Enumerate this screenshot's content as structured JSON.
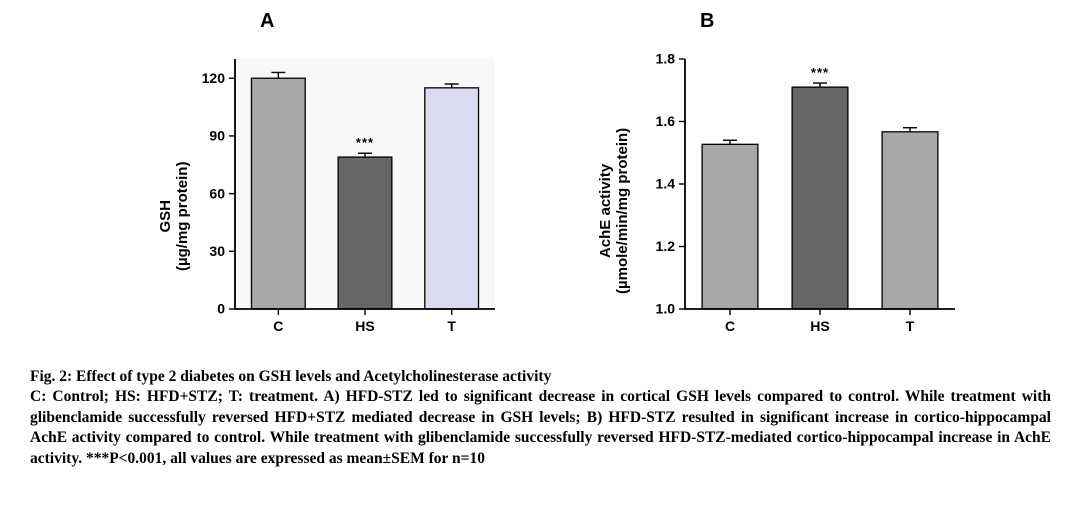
{
  "panels": {
    "A": {
      "label": "A",
      "type": "bar",
      "y_title_line1": "GSH",
      "y_title_line2": "(µg/mg protein)",
      "y_title_fontsize": 15,
      "ylim": [
        0,
        130
      ],
      "yticks": [
        0,
        30,
        60,
        90,
        120
      ],
      "categories": [
        "C",
        "HS",
        "T"
      ],
      "values": [
        120,
        79,
        115
      ],
      "errors": [
        3,
        2,
        2
      ],
      "sig_index": 1,
      "sig_label": "***",
      "bar_colors": [
        "#a8a8a8",
        "#666666",
        "#dadaf0"
      ],
      "background_color": "#f8f8f8",
      "bar_width": 0.62,
      "axis_color": "#000000",
      "tick_fontsize": 14
    },
    "B": {
      "label": "B",
      "type": "bar",
      "y_title_line1": "AchE activity",
      "y_title_line2": "(µmole/min/mg protein)",
      "y_title_fontsize": 15,
      "ylim": [
        1.0,
        1.8
      ],
      "yticks": [
        1.0,
        1.2,
        1.4,
        1.6,
        1.8
      ],
      "categories": [
        "C",
        "HS",
        "T"
      ],
      "values": [
        1.527,
        1.71,
        1.567
      ],
      "errors": [
        0.013,
        0.013,
        0.013
      ],
      "sig_index": 1,
      "sig_label": "***",
      "bar_colors": [
        "#a8a8a8",
        "#666666",
        "#a8a8a8"
      ],
      "background_color": "#ffffff",
      "bar_width": 0.62,
      "axis_color": "#000000",
      "tick_fontsize": 14
    }
  },
  "caption": {
    "title": "Fig. 2: Effect of type 2 diabetes on GSH levels and Acetylcholinesterase activity",
    "body": "C: Control; HS: HFD+STZ; T: treatment. A) HFD-STZ led to significant decrease in cortical GSH levels compared to control. While treatment with glibenclamide successfully reversed HFD+STZ mediated decrease in GSH levels; B) HFD-STZ resulted in significant increase in cortico-hippocampal AchE activity compared to control. While treatment with glibenclamide successfully reversed HFD-STZ-mediated cortico-hippocampal increase in AchE activity. ***P<0.001, all values are expressed as mean±SEM for n=10"
  }
}
